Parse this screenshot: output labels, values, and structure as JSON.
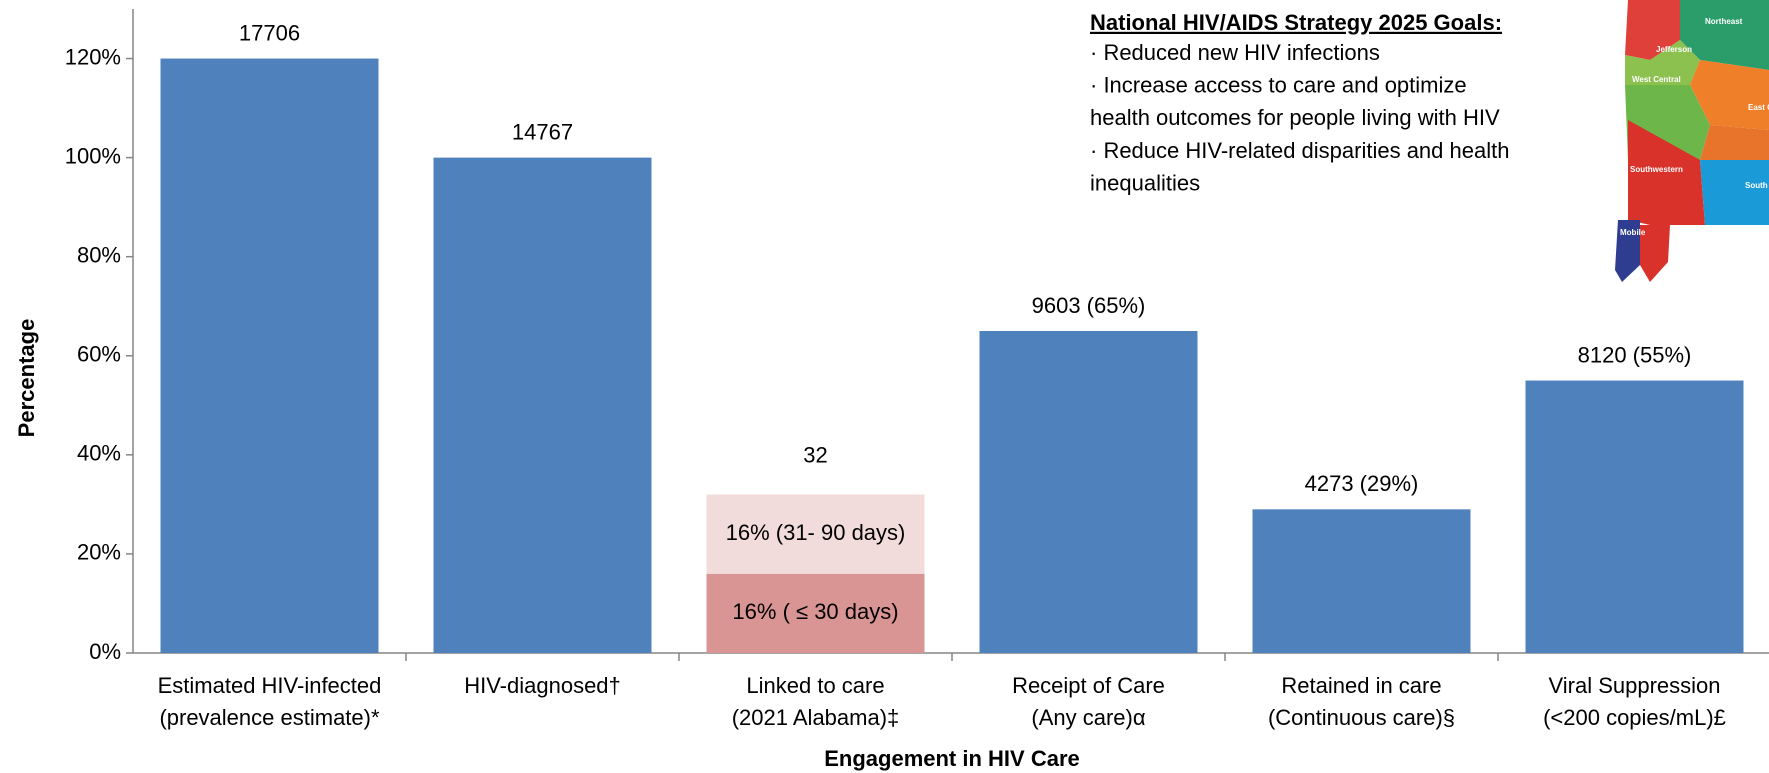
{
  "chart_data": {
    "type": "bar",
    "y_label": "Percentage",
    "x_label": "Engagement in HIV Care",
    "categories": [
      [
        "Estimated HIV-infected",
        "(prevalence estimate)*"
      ],
      [
        "HIV-diagnosed†"
      ],
      [
        "Linked to care",
        "(2021 Alabama)‡"
      ],
      [
        "Receipt of Care",
        "(Any care)α"
      ],
      [
        "Retained in care",
        "(Continuous care)§"
      ],
      [
        "Viral Suppression",
        "(<200 copies/mL)£"
      ]
    ],
    "values": [
      120,
      100,
      null,
      65,
      29,
      55
    ],
    "bar_labels": [
      "17706",
      "14767",
      "32",
      "9603 (65%)",
      "4273 (29%)",
      "8120 (55%)"
    ],
    "color": "#4f81bd",
    "stacked": {
      "category": 2,
      "segments": [
        {
          "value": 16,
          "label": "16% ( ≤ 30 days)",
          "color": "#d99594"
        },
        {
          "value": 16,
          "label": "16% (31- 90 days)",
          "color": "#f2dcdb"
        }
      ]
    },
    "ylim": [
      0,
      130
    ],
    "yticks": [
      {
        "value": 0,
        "label": "0%"
      },
      {
        "value": 20,
        "label": "20%"
      },
      {
        "value": 40,
        "label": "40%"
      },
      {
        "value": 60,
        "label": "60%"
      },
      {
        "value": 80,
        "label": "80%"
      },
      {
        "value": 100,
        "label": "100%"
      },
      {
        "value": 120,
        "label": "120%"
      }
    ],
    "grid": false,
    "goals": {
      "title": "National HIV/AIDS Strategy 2025 Goals:",
      "lines": [
        "· Reduced new HIV infections",
        "· Increase access to care and optimize",
        "health outcomes for people living with HIV",
        "· Reduce HIV-related disparities and health",
        "inequalities"
      ]
    },
    "map_labels": [
      "Northeast",
      "Jefferson",
      "West Central",
      "East C",
      "Southwestern",
      "South",
      "Mobile"
    ]
  }
}
